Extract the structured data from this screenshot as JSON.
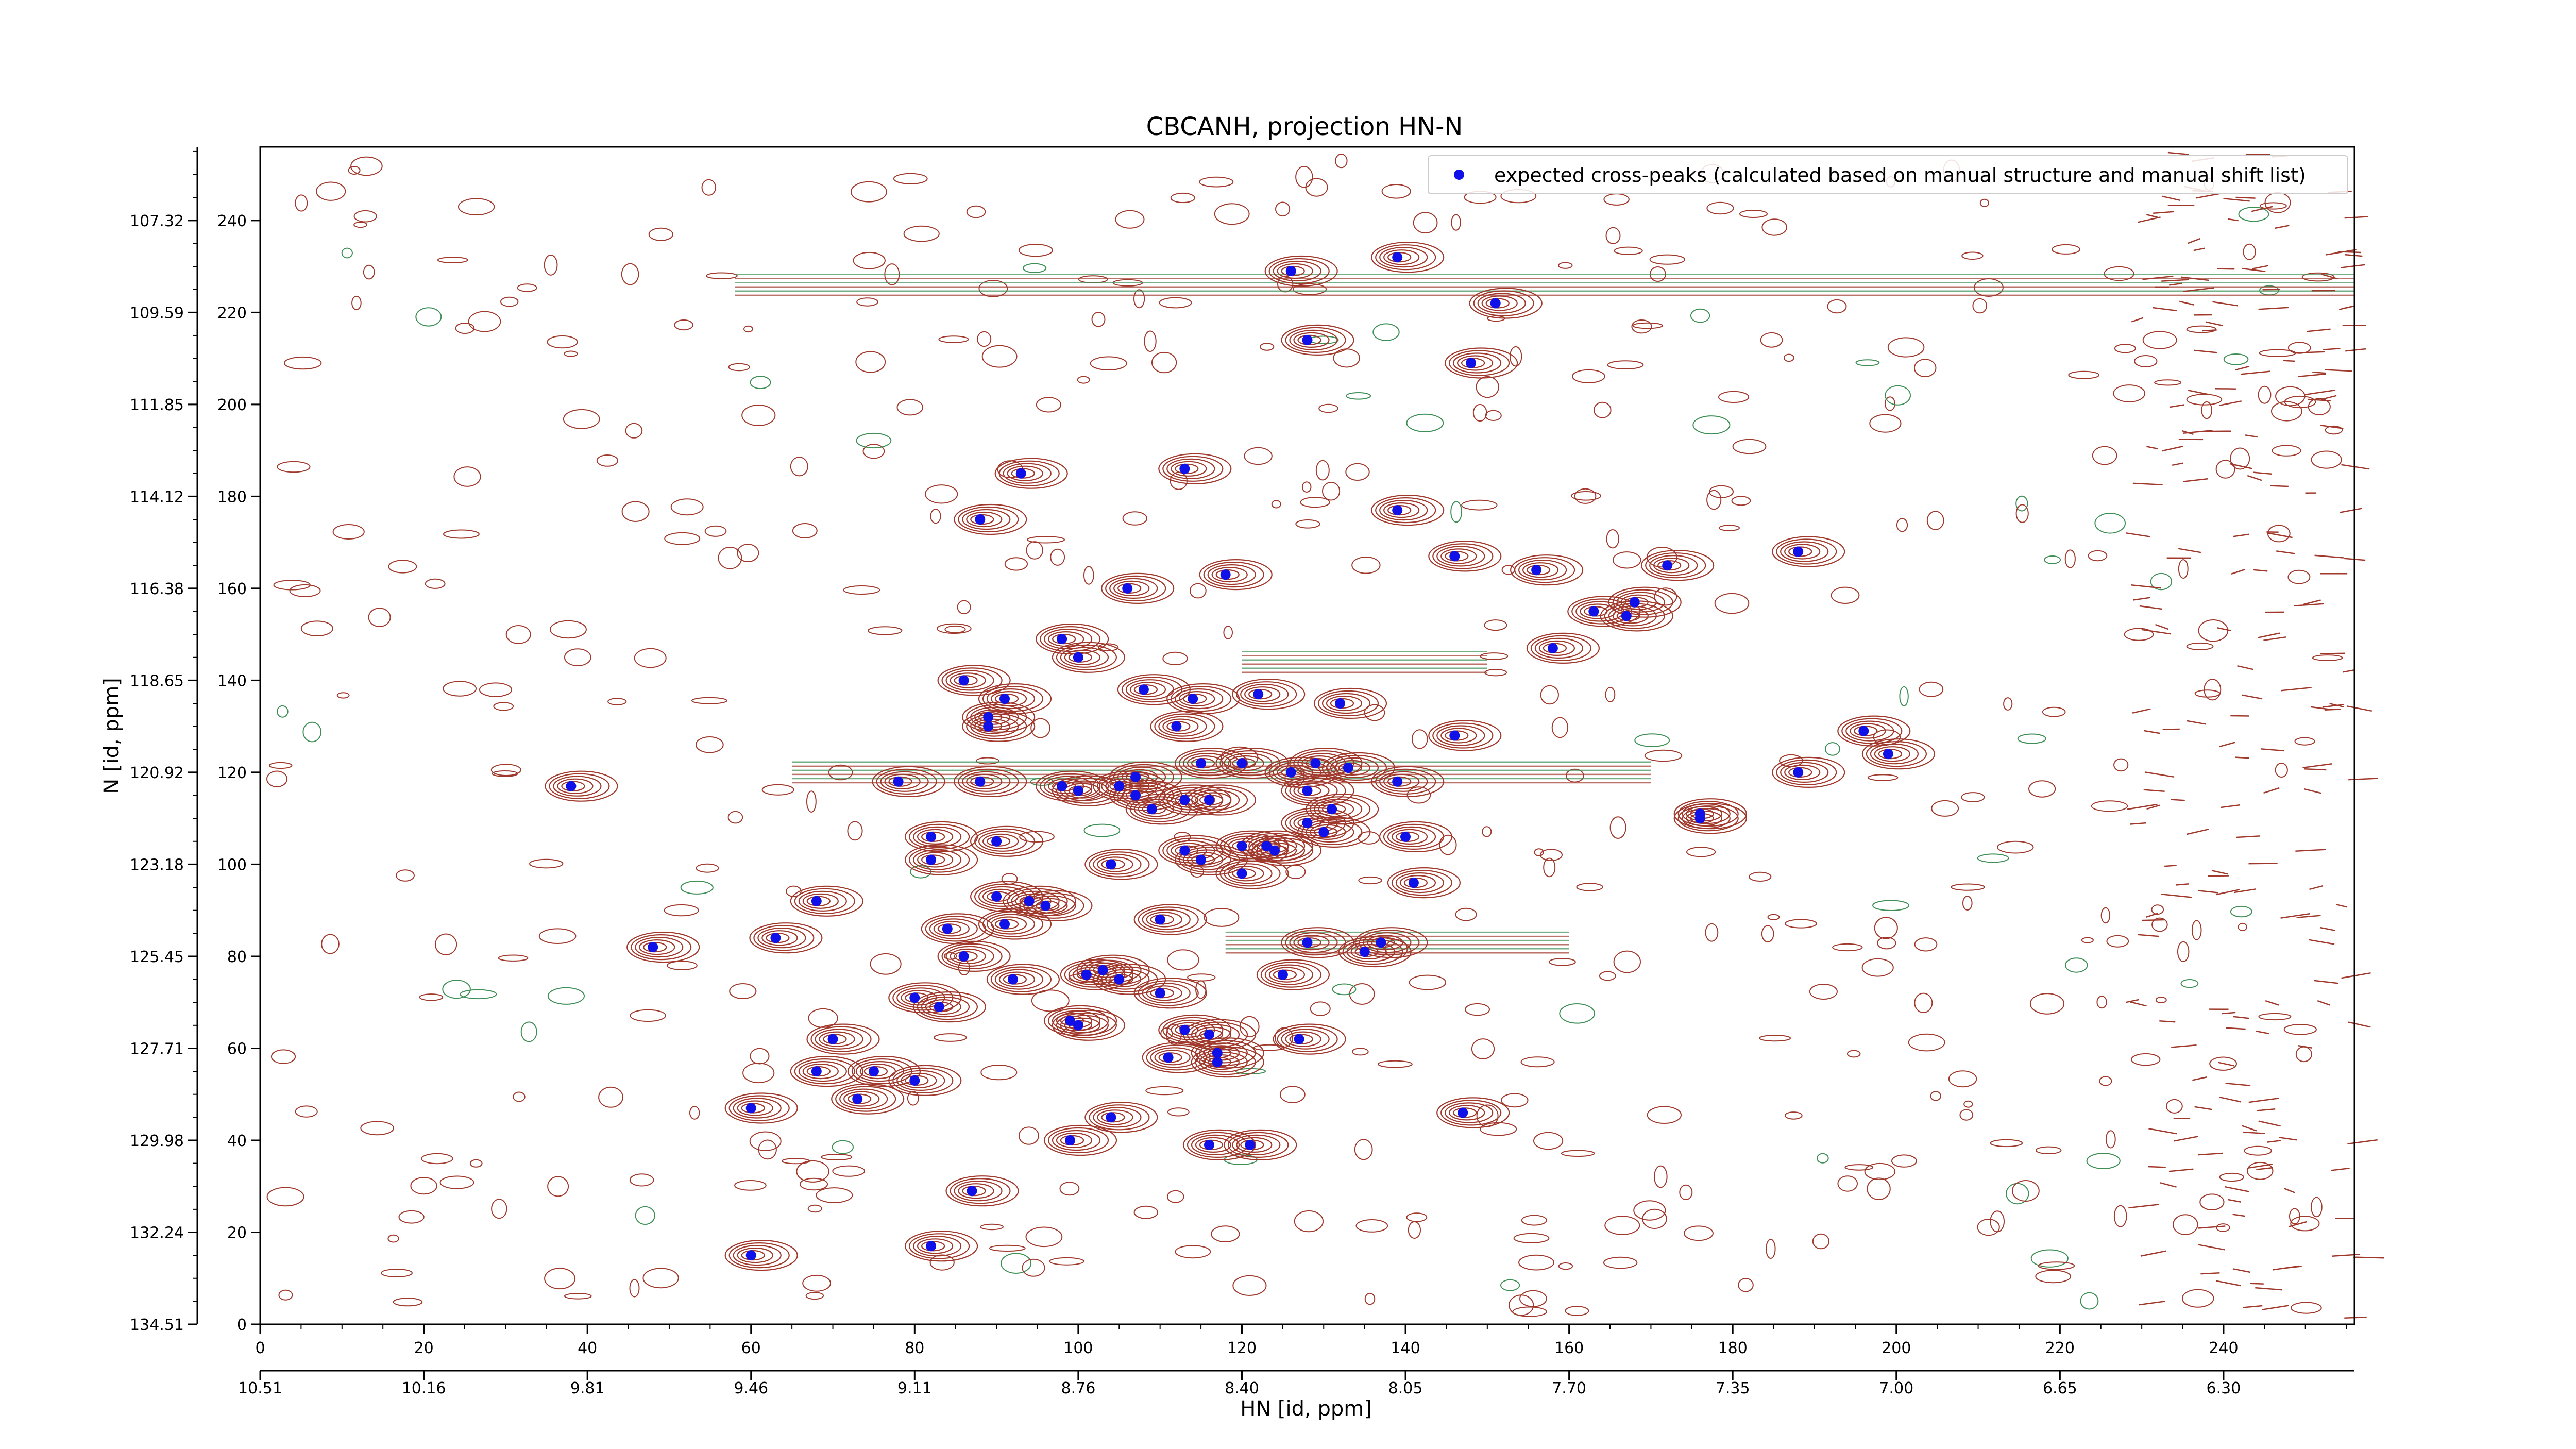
{
  "chart_data": {
    "type": "scatter",
    "title": "CBCANH, projection HN-N",
    "xlabel": "HN [id, ppm]",
    "ylabel": "N [id, ppm]",
    "xlim": [
      0,
      256
    ],
    "ylim": [
      0,
      256
    ],
    "grid": false,
    "x_ticks": [
      "0",
      "20",
      "40",
      "60",
      "80",
      "100",
      "120",
      "140",
      "160",
      "180",
      "200",
      "220",
      "240"
    ],
    "x_ppm_ticks": [
      "10.51",
      "10.16",
      "9.81",
      "9.46",
      "9.11",
      "8.76",
      "8.40",
      "8.05",
      "7.70",
      "7.35",
      "7.00",
      "6.65",
      "6.30"
    ],
    "y_ticks": [
      "0",
      "20",
      "40",
      "60",
      "80",
      "100",
      "120",
      "140",
      "160",
      "180",
      "200",
      "220",
      "240"
    ],
    "y_ppm_ticks": [
      "134.51",
      "132.24",
      "129.98",
      "127.71",
      "125.45",
      "123.18",
      "120.92",
      "118.65",
      "116.38",
      "114.12",
      "111.85",
      "109.59",
      "107.32"
    ],
    "legend": {
      "position": "top-right",
      "label": "expected cross-peaks (calculated based on manual structure and manual shift list)"
    },
    "colors": {
      "peaks": "#1010e8",
      "contour_positive": "#a0392c",
      "contour_negative": "#3d8f55"
    },
    "series": [
      {
        "name": "expected cross-peaks (calculated based on manual structure and manual shift list)",
        "points": [
          [
            38,
            117
          ],
          [
            48,
            82
          ],
          [
            60,
            47
          ],
          [
            60,
            15
          ],
          [
            63,
            84
          ],
          [
            68,
            92
          ],
          [
            68,
            55
          ],
          [
            70,
            62
          ],
          [
            73,
            49
          ],
          [
            75,
            55
          ],
          [
            78,
            118
          ],
          [
            80,
            53
          ],
          [
            80,
            71
          ],
          [
            82,
            17
          ],
          [
            82,
            101
          ],
          [
            82,
            106
          ],
          [
            83,
            69
          ],
          [
            84,
            86
          ],
          [
            86,
            80
          ],
          [
            86,
            140
          ],
          [
            87,
            29
          ],
          [
            88,
            118
          ],
          [
            88,
            175
          ],
          [
            89,
            130
          ],
          [
            89,
            132
          ],
          [
            90,
            93
          ],
          [
            90,
            105
          ],
          [
            91,
            136
          ],
          [
            91,
            87
          ],
          [
            92,
            75
          ],
          [
            93,
            185
          ],
          [
            94,
            92
          ],
          [
            96,
            91
          ],
          [
            98,
            117
          ],
          [
            98,
            149
          ],
          [
            99,
            40
          ],
          [
            99,
            66
          ],
          [
            100,
            65
          ],
          [
            100,
            145
          ],
          [
            100,
            116
          ],
          [
            101,
            76
          ],
          [
            103,
            77
          ],
          [
            104,
            100
          ],
          [
            104,
            45
          ],
          [
            105,
            75
          ],
          [
            105,
            117
          ],
          [
            106,
            160
          ],
          [
            107,
            115
          ],
          [
            107,
            119
          ],
          [
            108,
            138
          ],
          [
            109,
            112
          ],
          [
            110,
            88
          ],
          [
            110,
            72
          ],
          [
            111,
            58
          ],
          [
            112,
            130
          ],
          [
            113,
            64
          ],
          [
            113,
            114
          ],
          [
            113,
            103
          ],
          [
            113,
            186
          ],
          [
            114,
            136
          ],
          [
            115,
            101
          ],
          [
            115,
            122
          ],
          [
            116,
            39
          ],
          [
            116,
            63
          ],
          [
            116,
            114
          ],
          [
            117,
            57
          ],
          [
            117,
            59
          ],
          [
            118,
            163
          ],
          [
            120,
            104
          ],
          [
            120,
            98
          ],
          [
            120,
            122
          ],
          [
            121,
            39
          ],
          [
            122,
            137
          ],
          [
            123,
            104
          ],
          [
            124,
            103
          ],
          [
            125,
            76
          ],
          [
            126,
            229
          ],
          [
            126,
            120
          ],
          [
            127,
            62
          ],
          [
            128,
            83
          ],
          [
            128,
            109
          ],
          [
            128,
            116
          ],
          [
            128,
            214
          ],
          [
            129,
            122
          ],
          [
            130,
            107
          ],
          [
            131,
            112
          ],
          [
            132,
            135
          ],
          [
            133,
            121
          ],
          [
            135,
            81
          ],
          [
            137,
            83
          ],
          [
            139,
            118
          ],
          [
            139,
            232
          ],
          [
            139,
            177
          ],
          [
            140,
            106
          ],
          [
            141,
            96
          ],
          [
            146,
            167
          ],
          [
            146,
            128
          ],
          [
            147,
            46
          ],
          [
            148,
            209
          ],
          [
            151,
            222
          ],
          [
            156,
            164
          ],
          [
            158,
            147
          ],
          [
            163,
            155
          ],
          [
            167,
            154
          ],
          [
            168,
            157
          ],
          [
            176,
            110
          ],
          [
            172,
            165
          ],
          [
            176,
            111
          ],
          [
            188,
            120
          ],
          [
            188,
            168
          ],
          [
            196,
            129
          ],
          [
            199,
            124
          ]
        ]
      }
    ]
  }
}
